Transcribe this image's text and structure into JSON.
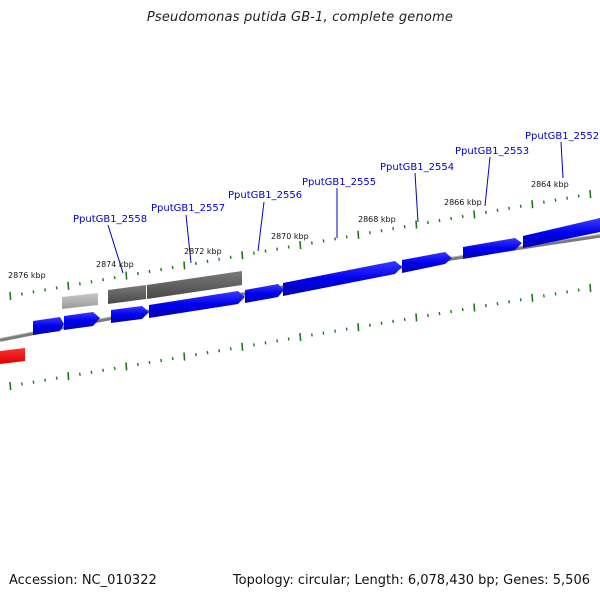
{
  "title": "Pseudomonas putida GB-1, complete genome",
  "footer": {
    "accession": "Accession: NC_010322",
    "summary": "Topology: circular; Length: 6,078,430 bp; Genes: 5,506"
  },
  "colors": {
    "forward_gene": "#0000ee",
    "reverse_gene": "#5a5a5a",
    "reverse_gene_light": "#a8a8a8",
    "highlight_gene": "#ff0000",
    "backbone": "#808080",
    "ticks": "#1a7a1a",
    "label": "#0000cc"
  },
  "ruler": {
    "labels": [
      "2864 kbp",
      "2866 kbp",
      "2868 kbp",
      "2870 kbp",
      "2872 kbp",
      "2874 kbp",
      "2876 kbp"
    ]
  },
  "gene_labels": [
    "PputGB1_2552",
    "PputGB1_2553",
    "PputGB1_2554",
    "PputGB1_2555",
    "PputGB1_2556",
    "PputGB1_2557",
    "PputGB1_2558"
  ],
  "genes": [
    {
      "strand": "+",
      "color": "blue"
    },
    {
      "strand": "+",
      "color": "blue"
    },
    {
      "strand": "+",
      "color": "blue"
    },
    {
      "strand": "+",
      "color": "blue"
    },
    {
      "strand": "+",
      "color": "blue"
    },
    {
      "strand": "+",
      "color": "blue"
    },
    {
      "strand": "+",
      "color": "blue"
    },
    {
      "strand": "+",
      "color": "blue"
    },
    {
      "strand": "+",
      "color": "blue"
    },
    {
      "strand": "-",
      "color": "light-gray"
    },
    {
      "strand": "-",
      "color": "dark-gray"
    },
    {
      "strand": "-",
      "color": "dark-gray"
    },
    {
      "strand": "+",
      "color": "red"
    }
  ]
}
